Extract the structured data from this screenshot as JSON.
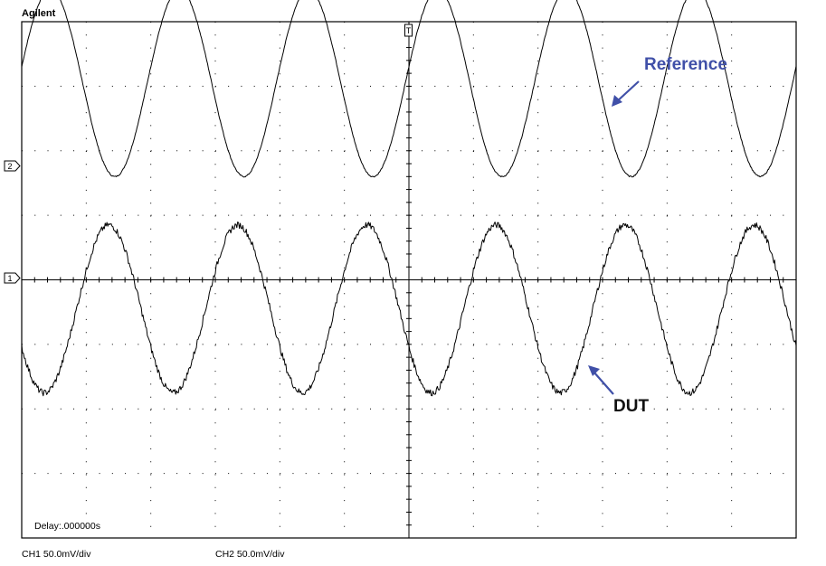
{
  "brand": "Agilent",
  "delay_text": "Delay:.000000s",
  "channels": [
    {
      "id": "1",
      "scale_label": "CH1 50.0mV/div"
    },
    {
      "id": "2",
      "scale_label": "CH2 50.0mV/div"
    }
  ],
  "trigger_marker": "T",
  "annotations": {
    "reference": "Reference",
    "dut": "DUT"
  },
  "colors": {
    "trace": "#000000",
    "reference_annotation": "#4050a8",
    "dut_annotation": "#4050a8",
    "dut_text": "#111111",
    "grid": "#000000"
  },
  "chart_data": {
    "type": "line",
    "grid": true,
    "divisions": {
      "horizontal": 12,
      "vertical": 8
    },
    "y_units": "divisions",
    "series": [
      {
        "name": "Reference",
        "channel": "2",
        "waveform": "sine",
        "cycles": 6.0,
        "center_div": 3.05,
        "amplitude_div": 1.45,
        "phase_deg": 10,
        "noise_div": 0.01
      },
      {
        "name": "DUT",
        "channel": "1",
        "waveform": "sine",
        "cycles": 6.0,
        "center_div": -0.45,
        "amplitude_div": 1.3,
        "phase_deg": 207,
        "noise_div": 0.05
      }
    ]
  }
}
